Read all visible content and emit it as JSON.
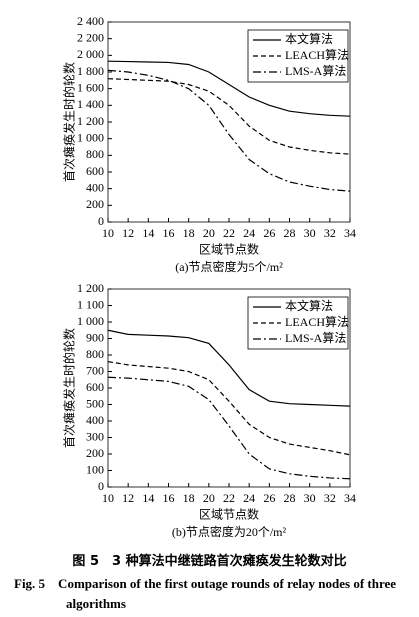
{
  "chart_data": [
    {
      "type": "line",
      "ylabel": "首次瘫痪发生时的轮数",
      "xlabel": "区域节点数",
      "subtitle": "(a)节点密度为5个/m²",
      "x": [
        10,
        12,
        14,
        16,
        18,
        20,
        22,
        24,
        26,
        28,
        30,
        32,
        34
      ],
      "xlim": [
        10,
        34
      ],
      "xticks": [
        10,
        12,
        14,
        16,
        18,
        20,
        22,
        24,
        26,
        28,
        30,
        32,
        34
      ],
      "ylim": [
        0,
        2400
      ],
      "yticks": [
        0,
        200,
        400,
        600,
        800,
        {
          "value": 1000,
          "label": "1 000"
        },
        {
          "value": 1200,
          "label": "1 200"
        },
        {
          "value": 1400,
          "label": "1 400"
        },
        {
          "value": 1600,
          "label": "1 600"
        },
        {
          "value": 1800,
          "label": "1 800"
        },
        {
          "value": 2000,
          "label": "2 000"
        },
        {
          "value": 2200,
          "label": "2 200"
        },
        {
          "value": 2400,
          "label": "2 400"
        }
      ],
      "legend": "upper right",
      "series": [
        {
          "name": "本文算法",
          "color": "#000000",
          "dash": "solid",
          "values": [
            1930,
            1925,
            1920,
            1915,
            1890,
            1800,
            1650,
            1500,
            1400,
            1330,
            1300,
            1280,
            1270
          ]
        },
        {
          "name": "LEACH算法",
          "color": "#000000",
          "dash": "dashed",
          "values": [
            1720,
            1710,
            1700,
            1690,
            1650,
            1570,
            1400,
            1150,
            980,
            900,
            860,
            830,
            815
          ]
        },
        {
          "name": "LMS-A算法",
          "color": "#000000",
          "dash": "dashdot",
          "values": [
            1820,
            1800,
            1760,
            1700,
            1600,
            1400,
            1050,
            750,
            580,
            480,
            430,
            390,
            370
          ]
        }
      ]
    },
    {
      "type": "line",
      "ylabel": "首次瘫痪发生时的轮数",
      "xlabel": "区域节点数",
      "subtitle": "(b)节点密度为20个/m²",
      "x": [
        10,
        12,
        14,
        16,
        18,
        20,
        22,
        24,
        26,
        28,
        30,
        32,
        34
      ],
      "xlim": [
        10,
        34
      ],
      "xticks": [
        10,
        12,
        14,
        16,
        18,
        20,
        22,
        24,
        26,
        28,
        30,
        32,
        34
      ],
      "ylim": [
        0,
        1200
      ],
      "yticks": [
        0,
        100,
        200,
        300,
        400,
        500,
        600,
        700,
        800,
        900,
        {
          "value": 1000,
          "label": "1 000"
        },
        {
          "value": 1100,
          "label": "1 100"
        },
        {
          "value": 1200,
          "label": "1 200"
        }
      ],
      "legend": "upper right",
      "series": [
        {
          "name": "本文算法",
          "color": "#000000",
          "dash": "solid",
          "values": [
            950,
            925,
            920,
            915,
            905,
            870,
            740,
            590,
            520,
            505,
            500,
            495,
            490
          ]
        },
        {
          "name": "LEACH算法",
          "color": "#000000",
          "dash": "dashed",
          "values": [
            760,
            740,
            730,
            720,
            700,
            650,
            520,
            380,
            300,
            260,
            240,
            220,
            195
          ]
        },
        {
          "name": "LMS-A算法",
          "color": "#000000",
          "dash": "dashdot",
          "values": [
            665,
            660,
            650,
            640,
            610,
            530,
            370,
            200,
            110,
            80,
            65,
            55,
            50
          ]
        }
      ]
    }
  ],
  "caption": {
    "zh": "图 5　3 种算法中继链路首次瘫痪发生轮数对比",
    "en": "Fig. 5　Comparison of the first outage rounds of relay nodes of three algorithms"
  }
}
